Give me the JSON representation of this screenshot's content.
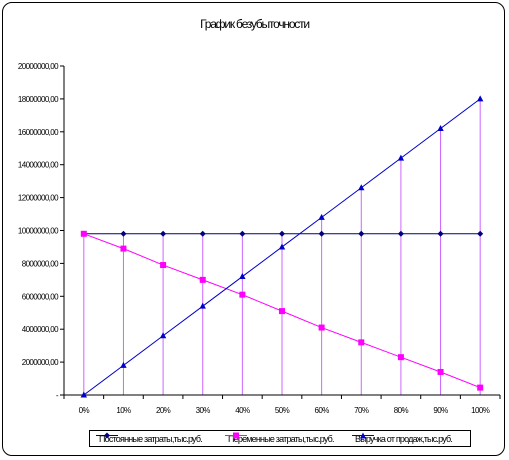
{
  "chart_data": {
    "type": "line",
    "title": "График безубыточности",
    "categories": [
      "0%",
      "10%",
      "20%",
      "30%",
      "40%",
      "50%",
      "60%",
      "70%",
      "80%",
      "90%",
      "100%"
    ],
    "y_ticks": [
      "-",
      "2000000,00",
      "4000000,00",
      "6000000,00",
      "8000000,00",
      "10000000,00",
      "12000000,00",
      "14000000,00",
      "16000000,00",
      "18000000,00",
      "20000000,00"
    ],
    "ylim": [
      0,
      20000000
    ],
    "grid": "vertical drop lines at each category",
    "legend_position": "bottom",
    "series": [
      {
        "name": "Постоянные затраты,тыс.руб.",
        "color": "#000080",
        "marker": "diamond",
        "values": [
          9800000,
          9800000,
          9800000,
          9800000,
          9800000,
          9800000,
          9800000,
          9800000,
          9800000,
          9800000,
          9800000
        ]
      },
      {
        "name": "Переменные затраты,тыс.руб.",
        "color": "#ff00ff",
        "marker": "square",
        "values": [
          9800000,
          8900000,
          7900000,
          7000000,
          6100000,
          5100000,
          4100000,
          3200000,
          2300000,
          1400000,
          450000
        ]
      },
      {
        "name": "Выручка от продаж,тыс.руб.",
        "color": "#0000cc",
        "marker": "triangle",
        "values": [
          0,
          1800000,
          3600000,
          5400000,
          7200000,
          9000000,
          10800000,
          12600000,
          14400000,
          16200000,
          18000000
        ]
      }
    ]
  }
}
